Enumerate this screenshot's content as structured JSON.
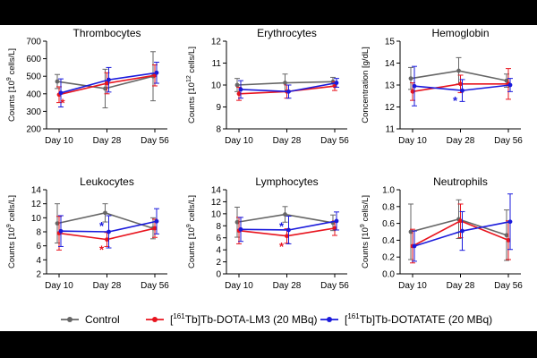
{
  "chart_data": [
    {
      "type": "line",
      "title": "Thrombocytes",
      "ylabel": "Counts [10^9 cells/L]",
      "ylabel_base": "Counts [10",
      "ylabel_exp": "9",
      "ylabel_tail": " cells/L]",
      "categories": [
        "Day 10",
        "Day 28",
        "Day 56"
      ],
      "ylim": [
        200,
        700
      ],
      "yticks": [
        "200",
        "300",
        "400",
        "500",
        "600",
        "700"
      ],
      "series": [
        {
          "name": "Control",
          "values": [
            470,
            430,
            500
          ],
          "err": [
            40,
            110,
            140
          ]
        },
        {
          "name": "[161Tb]Tb-DOTA-LM3 (20 MBq)",
          "values": [
            395,
            460,
            505
          ],
          "err": [
            45,
            60,
            60
          ]
        },
        {
          "name": "[161Tb]Tb-DOTATATE (20 MBq)",
          "values": [
            405,
            480,
            520
          ],
          "err": [
            80,
            70,
            60
          ]
        }
      ],
      "annotations": [
        {
          "text": "*",
          "category": "Day 10",
          "color": "red",
          "y": 350
        }
      ]
    },
    {
      "type": "line",
      "title": "Erythrocytes",
      "ylabel": "Counts [10^12 cells/L]",
      "ylabel_base": "Counts [10",
      "ylabel_exp": "12",
      "ylabel_tail": " cells/L]",
      "categories": [
        "Day 10",
        "Day 28",
        "Day 56"
      ],
      "ylim": [
        8,
        12
      ],
      "yticks": [
        "8",
        "9",
        "10",
        "11",
        "12"
      ],
      "series": [
        {
          "name": "Control",
          "values": [
            10.0,
            10.1,
            10.15
          ],
          "err": [
            0.3,
            0.4,
            0.2
          ]
        },
        {
          "name": "[161Tb]Tb-DOTA-LM3 (20 MBq)",
          "values": [
            9.6,
            9.7,
            9.95
          ],
          "err": [
            0.3,
            0.3,
            0.2
          ]
        },
        {
          "name": "[161Tb]Tb-DOTATATE (20 MBq)",
          "values": [
            9.8,
            9.7,
            10.1
          ],
          "err": [
            0.4,
            0.3,
            0.2
          ]
        }
      ],
      "annotations": []
    },
    {
      "type": "line",
      "title": "Hemoglobin",
      "ylabel": "Concentration [g/dL]",
      "categories": [
        "Day 10",
        "Day 28",
        "Day 56"
      ],
      "ylim": [
        11,
        15
      ],
      "yticks": [
        "11",
        "12",
        "13",
        "14",
        "15"
      ],
      "series": [
        {
          "name": "Control",
          "values": [
            13.3,
            13.65,
            13.2
          ],
          "err": [
            0.5,
            0.6,
            0.3
          ]
        },
        {
          "name": "[161Tb]Tb-DOTA-LM3 (20 MBq)",
          "values": [
            12.7,
            13.05,
            13.05
          ],
          "err": [
            0.4,
            0.4,
            0.7
          ]
        },
        {
          "name": "[161Tb]Tb-DOTATATE (20 MBq)",
          "values": [
            12.95,
            12.75,
            13.0
          ],
          "err": [
            0.9,
            0.5,
            0.3
          ]
        }
      ],
      "annotations": [
        {
          "text": "*",
          "category": "Day 28",
          "color": "blue",
          "y": 12.3
        }
      ]
    },
    {
      "type": "line",
      "title": "Leukocytes",
      "ylabel": "Counts [10^9 cells/L]",
      "ylabel_base": "Counts [10",
      "ylabel_exp": "9",
      "ylabel_tail": " cells/L]",
      "categories": [
        "Day 10",
        "Day 28",
        "Day 56"
      ],
      "ylim": [
        2,
        14
      ],
      "yticks": [
        "2",
        "4",
        "6",
        "8",
        "10",
        "12",
        "14"
      ],
      "series": [
        {
          "name": "Control",
          "values": [
            9.2,
            10.7,
            8.5
          ],
          "err": [
            2.8,
            1.3,
            1.5
          ]
        },
        {
          "name": "[161Tb]Tb-DOTA-LM3 (20 MBq)",
          "values": [
            7.8,
            6.9,
            8.5
          ],
          "err": [
            2.4,
            1.0,
            1.3
          ]
        },
        {
          "name": "[161Tb]Tb-DOTATATE (20 MBq)",
          "values": [
            8.1,
            8.0,
            9.5
          ],
          "err": [
            2.2,
            2.3,
            1.8
          ]
        }
      ],
      "annotations": [
        {
          "text": "*",
          "category": "Day 28",
          "color": "blue",
          "y": 8.9
        },
        {
          "text": "*",
          "category": "Day 28",
          "color": "red",
          "y": 5.5
        }
      ]
    },
    {
      "type": "line",
      "title": "Lymphocytes",
      "ylabel": "Counts [10^9 cells/L]",
      "ylabel_base": "Counts [10",
      "ylabel_exp": "9",
      "ylabel_tail": " cells/L]",
      "categories": [
        "Day 10",
        "Day 28",
        "Day 56"
      ],
      "ylim": [
        0,
        14
      ],
      "yticks": [
        "0",
        "2",
        "4",
        "6",
        "8",
        "10",
        "12",
        "14"
      ],
      "series": [
        {
          "name": "Control",
          "values": [
            8.6,
            9.9,
            8.5
          ],
          "err": [
            2.5,
            1.3,
            1.3
          ]
        },
        {
          "name": "[161Tb]Tb-DOTA-LM3 (20 MBq)",
          "values": [
            7.2,
            6.3,
            7.6
          ],
          "err": [
            2.2,
            1.2,
            1.2
          ]
        },
        {
          "name": "[161Tb]Tb-DOTATATE (20 MBq)",
          "values": [
            7.4,
            7.3,
            8.8
          ],
          "err": [
            2.0,
            2.3,
            1.5
          ]
        }
      ],
      "annotations": [
        {
          "text": "*",
          "category": "Day 28",
          "color": "blue",
          "y": 8.0
        },
        {
          "text": "*",
          "category": "Day 28",
          "color": "red",
          "y": 4.6
        }
      ]
    },
    {
      "type": "line",
      "title": "Neutrophils",
      "ylabel": "Counts [10^9 cells/L]",
      "ylabel_base": "Counts [10",
      "ylabel_exp": "9",
      "ylabel_tail": " cells/L]",
      "categories": [
        "Day 10",
        "Day 28",
        "Day 56"
      ],
      "ylim": [
        0.0,
        1.0
      ],
      "yticks": [
        "0.0",
        "0.2",
        "0.4",
        "0.6",
        "0.8",
        "1.0"
      ],
      "series": [
        {
          "name": "Control",
          "values": [
            0.5,
            0.65,
            0.46
          ],
          "err": [
            0.33,
            0.23,
            0.3
          ]
        },
        {
          "name": "[161Tb]Tb-DOTA-LM3 (20 MBq)",
          "values": [
            0.33,
            0.63,
            0.4
          ],
          "err": [
            0.2,
            0.2,
            0.23
          ]
        },
        {
          "name": "[161Tb]Tb-DOTATATE (20 MBq)",
          "values": [
            0.33,
            0.51,
            0.62
          ],
          "err": [
            0.18,
            0.23,
            0.33
          ]
        }
      ],
      "annotations": []
    }
  ],
  "legend": [
    {
      "pre": "",
      "sup": "",
      "post": "Control",
      "color": "#666666"
    },
    {
      "pre": "[",
      "sup": "161",
      "post": "Tb]Tb-DOTA-LM3 (20 MBq)",
      "color": "#e8141e"
    },
    {
      "pre": "[",
      "sup": "161",
      "post": "Tb]Tb-DOTATATE (20 MBq)",
      "color": "#1a1adc"
    }
  ],
  "colors": {
    "Control": "#666666",
    "LM3": "#e8141e",
    "DOTATATE": "#1a1adc",
    "red": "#e8141e",
    "blue": "#1a1adc"
  }
}
